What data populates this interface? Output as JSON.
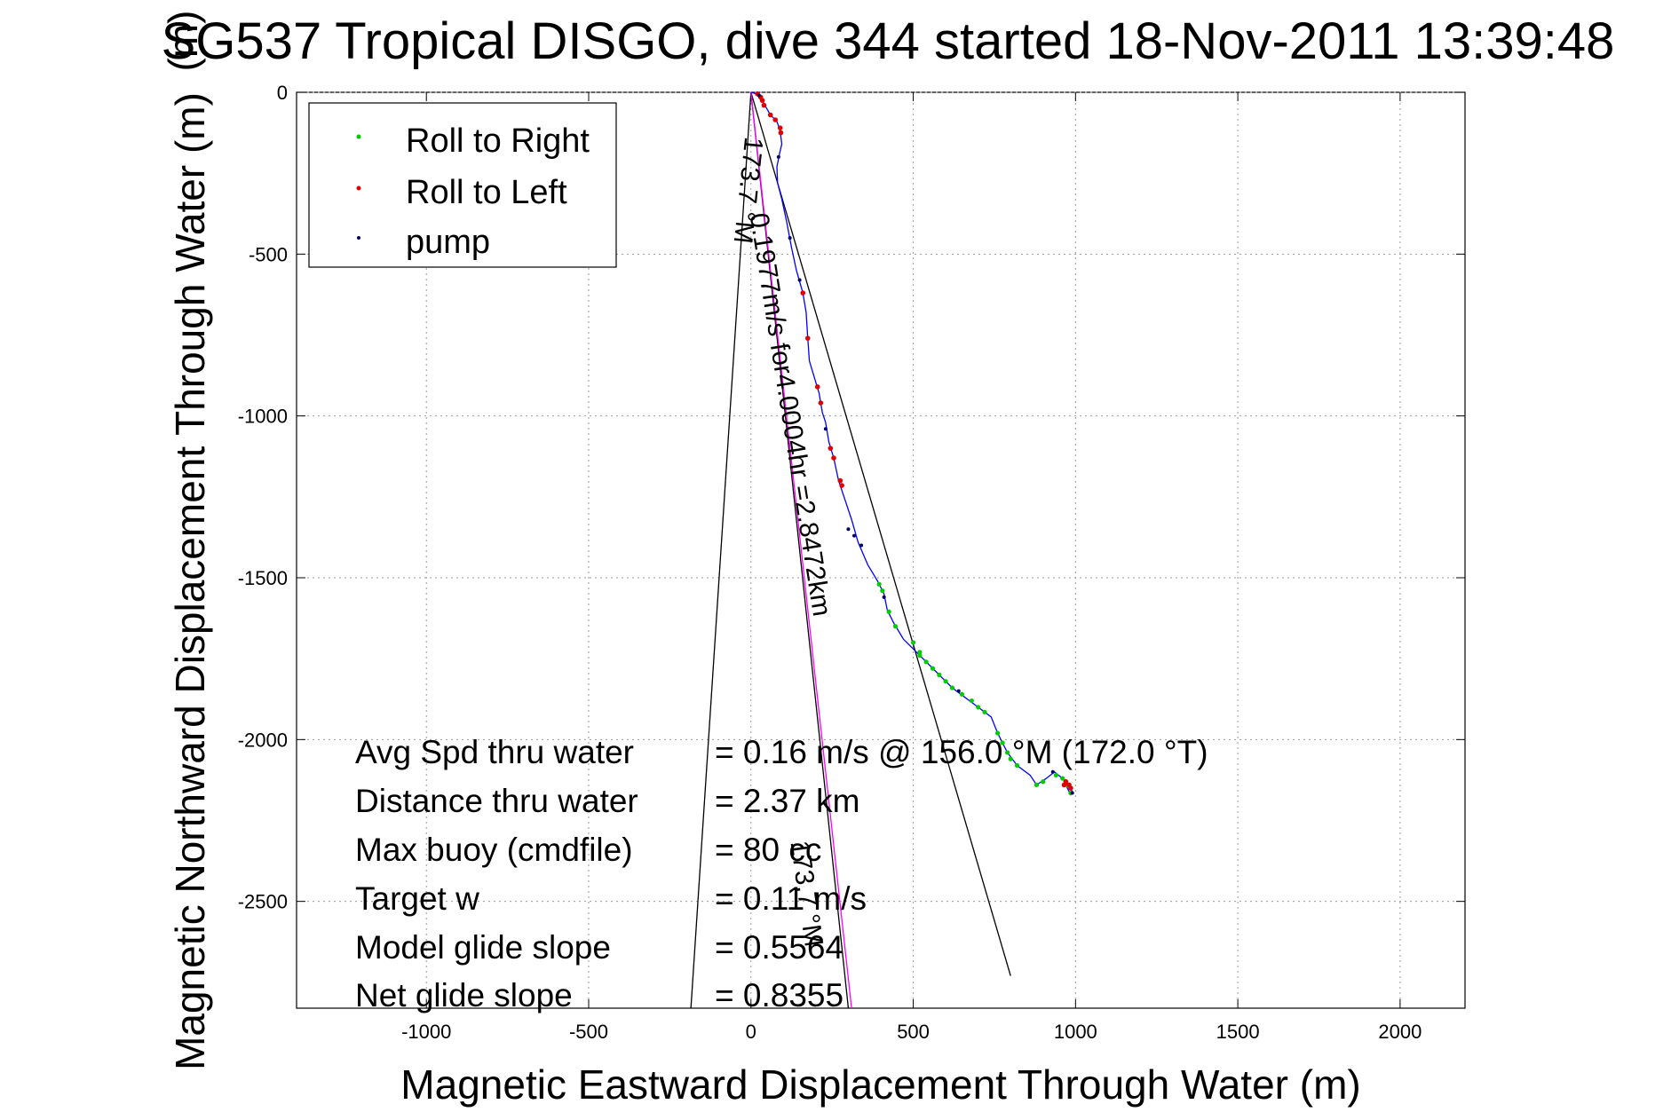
{
  "chart_data": {
    "type": "scatter",
    "title": "SG537 Tropical DISGO, dive 344 started 18-Nov-2011 13:39:48",
    "title_overlay_fragment": "(m)",
    "xlabel": "Magnetic Eastward Displacement Through Water (m)",
    "ylabel": "Magnetic Northward Displacement Through Water (m)",
    "xlim": [
      -1400,
      2200
    ],
    "ylim": [
      -2830,
      0
    ],
    "xticks": [
      -1000,
      -500,
      0,
      500,
      1000,
      1500,
      2000
    ],
    "yticks": [
      0,
      -500,
      -1000,
      -1500,
      -2000,
      -2500
    ],
    "grid": true,
    "legend_position": "top-left",
    "legend": [
      {
        "label": "Roll to Right",
        "color": "#00cc00"
      },
      {
        "label": "Roll to Left",
        "color": "#e00000"
      },
      {
        "label": "pump",
        "color": "#000066"
      }
    ],
    "track": {
      "color": "#0000ff",
      "points": [
        [
          0,
          0
        ],
        [
          18,
          -5
        ],
        [
          30,
          -12
        ],
        [
          40,
          -35
        ],
        [
          60,
          -70
        ],
        [
          80,
          -90
        ],
        [
          90,
          -120
        ],
        [
          95,
          -160
        ],
        [
          88,
          -190
        ],
        [
          80,
          -230
        ],
        [
          82,
          -280
        ],
        [
          95,
          -330
        ],
        [
          110,
          -400
        ],
        [
          125,
          -480
        ],
        [
          140,
          -550
        ],
        [
          160,
          -620
        ],
        [
          170,
          -680
        ],
        [
          175,
          -760
        ],
        [
          180,
          -830
        ],
        [
          195,
          -880
        ],
        [
          210,
          -930
        ],
        [
          220,
          -990
        ],
        [
          230,
          -1020
        ],
        [
          240,
          -1080
        ],
        [
          255,
          -1130
        ],
        [
          270,
          -1200
        ],
        [
          290,
          -1260
        ],
        [
          310,
          -1320
        ],
        [
          330,
          -1390
        ],
        [
          360,
          -1460
        ],
        [
          390,
          -1510
        ],
        [
          410,
          -1550
        ],
        [
          420,
          -1600
        ],
        [
          440,
          -1640
        ],
        [
          470,
          -1690
        ],
        [
          500,
          -1720
        ],
        [
          540,
          -1760
        ],
        [
          580,
          -1800
        ],
        [
          620,
          -1840
        ],
        [
          660,
          -1870
        ],
        [
          700,
          -1900
        ],
        [
          740,
          -1930
        ],
        [
          760,
          -1980
        ],
        [
          790,
          -2040
        ],
        [
          820,
          -2080
        ],
        [
          860,
          -2110
        ],
        [
          880,
          -2140
        ],
        [
          910,
          -2120
        ],
        [
          935,
          -2100
        ],
        [
          960,
          -2120
        ],
        [
          990,
          -2160
        ],
        [
          985,
          -2170
        ],
        [
          975,
          -2150
        ],
        [
          968,
          -2135
        ]
      ]
    },
    "roll_right_points": [
      [
        500,
        -1700
      ],
      [
        520,
        -1730
      ],
      [
        540,
        -1760
      ],
      [
        560,
        -1780
      ],
      [
        580,
        -1800
      ],
      [
        600,
        -1820
      ],
      [
        620,
        -1840
      ],
      [
        650,
        -1860
      ],
      [
        680,
        -1880
      ],
      [
        700,
        -1900
      ],
      [
        720,
        -1915
      ],
      [
        760,
        -1980
      ],
      [
        775,
        -2010
      ],
      [
        790,
        -2040
      ],
      [
        800,
        -2060
      ],
      [
        820,
        -2080
      ],
      [
        880,
        -2140
      ],
      [
        900,
        -2130
      ],
      [
        940,
        -2110
      ],
      [
        960,
        -2120
      ],
      [
        975,
        -2140
      ],
      [
        985,
        -2165
      ],
      [
        395,
        -1520
      ],
      [
        405,
        -1540
      ],
      [
        425,
        -1605
      ],
      [
        445,
        -1650
      ],
      [
        520,
        -1740
      ]
    ],
    "roll_left_points": [
      [
        20,
        -5
      ],
      [
        30,
        -15
      ],
      [
        35,
        -25
      ],
      [
        40,
        -40
      ],
      [
        60,
        -70
      ],
      [
        75,
        -85
      ],
      [
        90,
        -110
      ],
      [
        92,
        -125
      ],
      [
        160,
        -620
      ],
      [
        175,
        -760
      ],
      [
        205,
        -910
      ],
      [
        215,
        -960
      ],
      [
        245,
        -1100
      ],
      [
        255,
        -1130
      ],
      [
        275,
        -1200
      ],
      [
        280,
        -1215
      ],
      [
        970,
        -2130
      ],
      [
        980,
        -2140
      ],
      [
        985,
        -2150
      ],
      [
        965,
        -2140
      ]
    ],
    "pump_points": [
      [
        25,
        -10
      ],
      [
        85,
        -200
      ],
      [
        120,
        -450
      ],
      [
        150,
        -580
      ],
      [
        230,
        -1040
      ],
      [
        300,
        -1350
      ],
      [
        318,
        -1370
      ],
      [
        340,
        -1400
      ],
      [
        410,
        -1560
      ],
      [
        640,
        -1850
      ],
      [
        930,
        -2100
      ],
      [
        990,
        -2165
      ]
    ],
    "lines": [
      {
        "name": "heading_line_left",
        "color": "#000000",
        "points": [
          [
            0,
            0
          ],
          [
            -185,
            -2830
          ]
        ]
      },
      {
        "name": "heading_line_right",
        "color": "#000000",
        "points": [
          [
            0,
            0
          ],
          [
            800,
            -2730
          ]
        ]
      },
      {
        "name": "heading_line_mid",
        "color": "#000000",
        "points": [
          [
            0,
            0
          ],
          [
            300,
            -2830
          ]
        ]
      },
      {
        "name": "current_line",
        "color": "#ff00ff",
        "points": [
          [
            0,
            0
          ],
          [
            310,
            -2830
          ]
        ]
      }
    ],
    "annotations": [
      {
        "id": "ann-speed",
        "text": "0.1977m/s for4.0004hr =2.8472km",
        "x": 60,
        "y": -2000,
        "angle": 81
      },
      {
        "id": "ann-heading-left",
        "text": "173.7 °M",
        "x": -33,
        "y": -300,
        "angle": 96
      },
      {
        "id": "ann-heading-mid",
        "text": "173.7 °M",
        "x": 150,
        "y": -2550,
        "angle": 82
      }
    ],
    "stats": [
      {
        "label": "Avg Spd thru water",
        "value": "=  0.16 m/s @ 156.0 °M (172.0 °T)"
      },
      {
        "label": "Distance thru water",
        "value": "=  2.37 km"
      },
      {
        "label": "Max buoy (cmdfile)",
        "value": "= 80 cc"
      },
      {
        "label": "Target w",
        "value": "= 0.11 m/s"
      },
      {
        "label": "Model glide slope",
        "value": "= 0.5564"
      },
      {
        "label": "Net glide slope",
        "value": "= 0.8355"
      }
    ]
  }
}
